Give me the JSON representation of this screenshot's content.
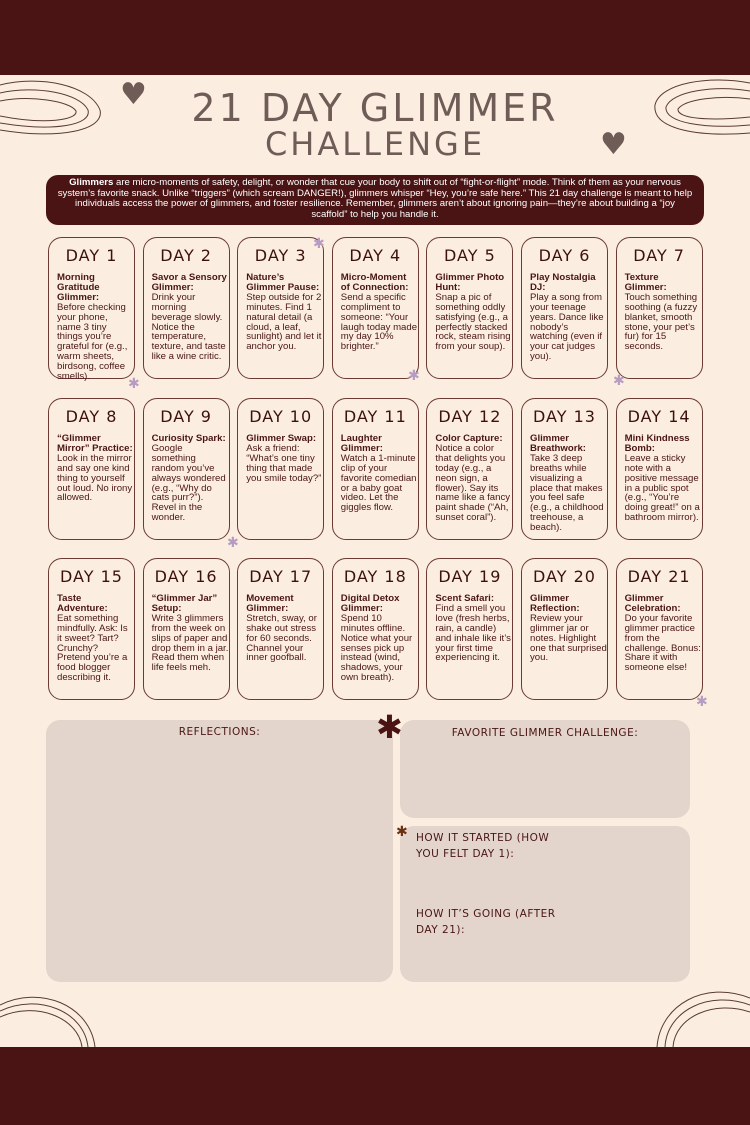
{
  "title": {
    "line1": "21 DAY GLIMMER",
    "line2": "CHALLENGE"
  },
  "intro": {
    "bold": "Glimmers",
    "text": " are micro-moments of safety, delight, or wonder that cue your body to shift out of “fight-or-flight” mode. Think of them as your nervous system’s favorite snack. Unlike “triggers” (which scream DANGER!), glimmers whisper “Hey, you’re safe here.” This 21 day challenge is meant to help individuals access the power of glimmers, and foster resilience. Remember, glimmers aren’t about ignoring pain—they’re about building a “joy scaffold” to help you handle it."
  },
  "days": [
    {
      "label": "DAY 1",
      "title": "Morning Gratitude Glimmer:",
      "body": "Before checking your phone, name 3 tiny things you’re grateful for (e.g., warm sheets, birdsong, coffee smells)."
    },
    {
      "label": "DAY 2",
      "title": "Savor a Sensory Glimmer:",
      "body": "Drink your morning beverage slowly. Notice the temperature, texture, and taste like a wine critic."
    },
    {
      "label": "DAY 3",
      "title": "Nature’s Glimmer Pause:",
      "body": "Step outside for 2 minutes. Find 1 natural detail (a cloud, a leaf, sunlight) and let it anchor you."
    },
    {
      "label": "DAY 4",
      "title": "Micro-Moment of Connection:",
      "body": "Send a specific compliment to someone: “Your laugh today made my day 10% brighter.”"
    },
    {
      "label": "DAY 5",
      "title": "Glimmer Photo Hunt:",
      "body": "Snap a pic of something oddly satisfying (e.g., a perfectly stacked rock, steam rising from your soup)."
    },
    {
      "label": "DAY 6",
      "title": "Play Nostalgia DJ:",
      "body": "Play a song from your teenage years. Dance like nobody’s watching (even if your cat judges you)."
    },
    {
      "label": "DAY 7",
      "title": "Texture Glimmer:",
      "body": "Touch something soothing (a fuzzy blanket, smooth stone, your pet’s fur) for 15 seconds."
    },
    {
      "label": "DAY 8",
      "title": "“Glimmer Mirror” Practice:",
      "body": "Look in the mirror and say one kind thing to yourself out loud. No irony allowed."
    },
    {
      "label": "DAY 9",
      "title": "Curiosity Spark:",
      "body": "Google something random you’ve always wondered (e.g., “Why do cats purr?”). Revel in the wonder."
    },
    {
      "label": "DAY 10",
      "title": "Glimmer Swap:",
      "body": "Ask a friend: “What’s one tiny thing that made you smile today?”"
    },
    {
      "label": "DAY 11",
      "title": "Laughter Glimmer:",
      "body": "Watch a 1-minute clip of your favorite comedian or a baby goat video. Let the giggles flow."
    },
    {
      "label": "DAY 12",
      "title": "Color Capture:",
      "body": "Notice a color that delights you today (e.g., a neon sign, a flower). Say its name like a fancy paint shade (“Ah, sunset coral”)."
    },
    {
      "label": "DAY 13",
      "title": "Glimmer Breathwork:",
      "body": "Take 3 deep breaths while visualizing a place that makes you feel safe (e.g., a childhood treehouse, a beach)."
    },
    {
      "label": "DAY 14",
      "title": "Mini Kindness Bomb:",
      "body": "Leave a sticky note with a positive message in a public spot (e.g., “You’re doing great!” on a bathroom mirror)."
    },
    {
      "label": "DAY 15",
      "title": "Taste Adventure:",
      "body": "Eat something mindfully. Ask: Is it sweet? Tart? Crunchy? Pretend you’re a food blogger describing it."
    },
    {
      "label": "DAY 16",
      "title": "“Glimmer Jar” Setup:",
      "body": "Write 3 glimmers from the week on slips of paper and drop them in a jar. Read them when life feels meh."
    },
    {
      "label": "DAY 17",
      "title": "Movement Glimmer:",
      "body": "Stretch, sway, or shake out stress for 60 seconds. Channel your inner goofball."
    },
    {
      "label": "DAY 18",
      "title": "Digital Detox Glimmer:",
      "body": "Spend 10 minutes offline. Notice what your senses pick up instead (wind, shadows, your own breath)."
    },
    {
      "label": "DAY 19",
      "title": "Scent Safari:",
      "body": "Find a smell you love (fresh herbs, rain, a candle) and inhale like it’s your first time experiencing it."
    },
    {
      "label": "DAY 20",
      "title": "Glimmer Reflection:",
      "body": "Review your glimmer jar or notes. Highlight one that surprised you."
    },
    {
      "label": "DAY 21",
      "title": "Glimmer Celebration:",
      "body": "Do your favorite glimmer practice from the challenge. Bonus: Share it with someone else!"
    }
  ],
  "worksheet": {
    "reflections": "REFLECTIONS:",
    "favorite": "FAVORITE GLIMMER CHALLENGE:",
    "started": "HOW IT STARTED (HOW YOU FELT DAY 1):",
    "going": "HOW IT’S GOING (AFTER DAY 21):"
  },
  "colors": {
    "band": "#4b1414",
    "background": "#fbeee1",
    "box": "#e3d5cb",
    "title": "#6f5c57"
  },
  "icons": [
    "heart-icon",
    "flower-icon",
    "sparkle-icon",
    "swirl-line-decoration"
  ]
}
